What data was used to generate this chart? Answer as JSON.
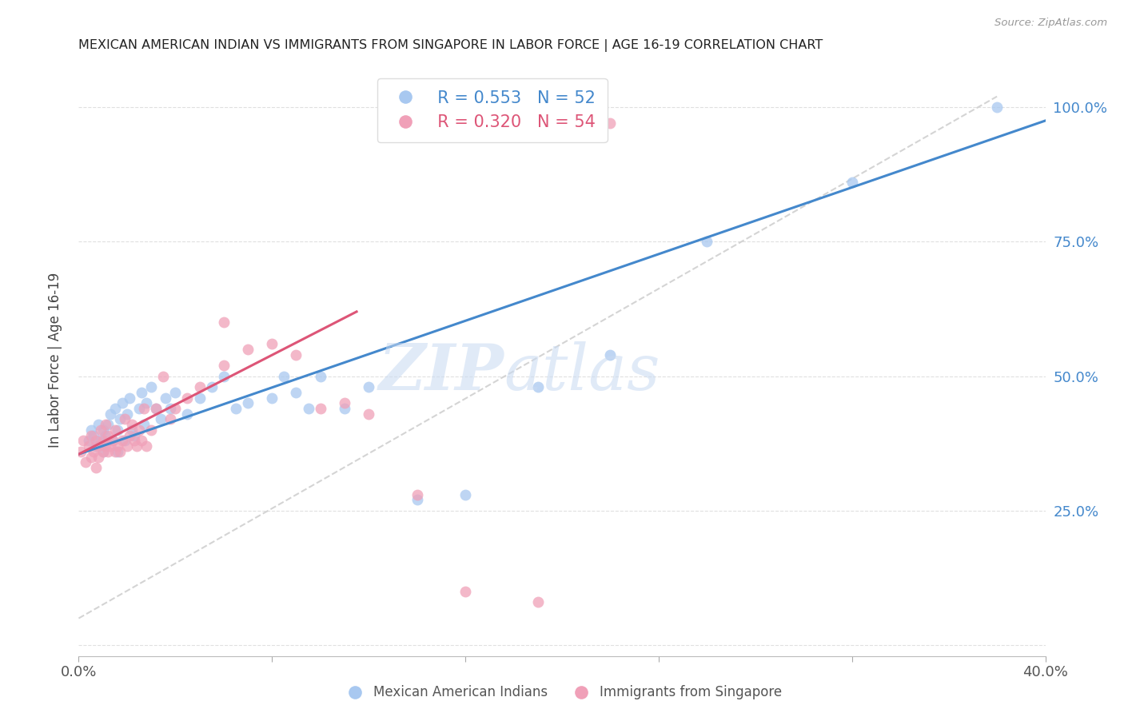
{
  "title": "MEXICAN AMERICAN INDIAN VS IMMIGRANTS FROM SINGAPORE IN LABOR FORCE | AGE 16-19 CORRELATION CHART",
  "source": "Source: ZipAtlas.com",
  "ylabel": "In Labor Force | Age 16-19",
  "xlim": [
    0.0,
    0.4
  ],
  "ylim": [
    -0.02,
    1.08
  ],
  "yticks": [
    0.0,
    0.25,
    0.5,
    0.75,
    1.0
  ],
  "ytick_labels": [
    "",
    "25.0%",
    "50.0%",
    "75.0%",
    "100.0%"
  ],
  "xticks": [
    0.0,
    0.08,
    0.16,
    0.24,
    0.32,
    0.4
  ],
  "xtick_labels": [
    "0.0%",
    "",
    "",
    "",
    "",
    "40.0%"
  ],
  "blue_color": "#a8c8f0",
  "pink_color": "#f0a0b8",
  "blue_line_color": "#4488cc",
  "pink_line_color": "#dd5577",
  "ref_line_color": "#d0d0d0",
  "legend_blue_R": "R = 0.553",
  "legend_blue_N": "N = 52",
  "legend_pink_R": "R = 0.320",
  "legend_pink_N": "N = 54",
  "label_blue": "Mexican American Indians",
  "label_pink": "Immigrants from Singapore",
  "watermark_zip": "ZIP",
  "watermark_atlas": "atlas",
  "blue_line_x": [
    0.0,
    0.4
  ],
  "blue_line_y": [
    0.355,
    0.975
  ],
  "pink_line_x": [
    0.0,
    0.115
  ],
  "pink_line_y": [
    0.355,
    0.62
  ],
  "ref_line_x": [
    0.0,
    0.38
  ],
  "ref_line_y": [
    0.05,
    1.02
  ],
  "blue_x": [
    0.004,
    0.005,
    0.006,
    0.007,
    0.008,
    0.009,
    0.01,
    0.01,
    0.011,
    0.012,
    0.013,
    0.014,
    0.015,
    0.016,
    0.016,
    0.017,
    0.018,
    0.019,
    0.02,
    0.021,
    0.022,
    0.023,
    0.025,
    0.026,
    0.027,
    0.028,
    0.03,
    0.032,
    0.034,
    0.036,
    0.038,
    0.04,
    0.045,
    0.05,
    0.055,
    0.06,
    0.065,
    0.07,
    0.08,
    0.085,
    0.09,
    0.095,
    0.1,
    0.11,
    0.12,
    0.14,
    0.16,
    0.19,
    0.22,
    0.26,
    0.32,
    0.38
  ],
  "blue_y": [
    0.38,
    0.4,
    0.39,
    0.37,
    0.41,
    0.38,
    0.4,
    0.36,
    0.39,
    0.41,
    0.43,
    0.38,
    0.44,
    0.4,
    0.36,
    0.42,
    0.45,
    0.38,
    0.43,
    0.46,
    0.4,
    0.39,
    0.44,
    0.47,
    0.41,
    0.45,
    0.48,
    0.44,
    0.42,
    0.46,
    0.44,
    0.47,
    0.43,
    0.46,
    0.48,
    0.5,
    0.44,
    0.45,
    0.46,
    0.5,
    0.47,
    0.44,
    0.5,
    0.44,
    0.48,
    0.27,
    0.28,
    0.48,
    0.54,
    0.75,
    0.86,
    1.0
  ],
  "pink_x": [
    0.001,
    0.002,
    0.003,
    0.004,
    0.005,
    0.005,
    0.006,
    0.007,
    0.007,
    0.008,
    0.008,
    0.009,
    0.01,
    0.01,
    0.011,
    0.011,
    0.012,
    0.012,
    0.013,
    0.014,
    0.015,
    0.015,
    0.016,
    0.017,
    0.018,
    0.019,
    0.02,
    0.021,
    0.022,
    0.023,
    0.024,
    0.025,
    0.026,
    0.027,
    0.028,
    0.03,
    0.032,
    0.035,
    0.038,
    0.04,
    0.045,
    0.05,
    0.06,
    0.07,
    0.08,
    0.09,
    0.1,
    0.11,
    0.12,
    0.14,
    0.16,
    0.19,
    0.22,
    0.06
  ],
  "pink_y": [
    0.36,
    0.38,
    0.34,
    0.37,
    0.35,
    0.39,
    0.36,
    0.38,
    0.33,
    0.37,
    0.35,
    0.4,
    0.36,
    0.38,
    0.37,
    0.41,
    0.36,
    0.39,
    0.37,
    0.38,
    0.36,
    0.4,
    0.37,
    0.36,
    0.38,
    0.42,
    0.37,
    0.39,
    0.41,
    0.38,
    0.37,
    0.4,
    0.38,
    0.44,
    0.37,
    0.4,
    0.44,
    0.5,
    0.42,
    0.44,
    0.46,
    0.48,
    0.52,
    0.55,
    0.56,
    0.54,
    0.44,
    0.45,
    0.43,
    0.28,
    0.1,
    0.08,
    0.97,
    0.6
  ]
}
